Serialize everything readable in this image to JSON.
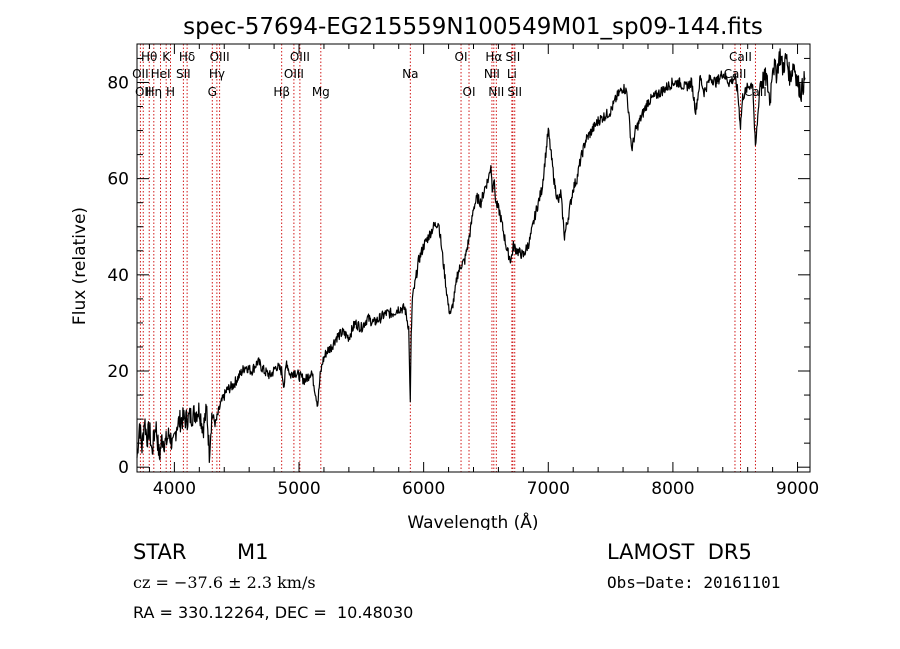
{
  "chart_data": {
    "type": "line",
    "title": "spec-57694-EG215559N100549M01_sp09-144.fits",
    "xlabel": "Wavelength (Å)",
    "ylabel": "Flux (relative)",
    "xlim": [
      3700,
      9100
    ],
    "ylim": [
      -1,
      88
    ],
    "x_ticks": [
      4000,
      5000,
      6000,
      7000,
      8000,
      9000
    ],
    "y_ticks": [
      0,
      20,
      40,
      60,
      80
    ],
    "grid": false,
    "legend": "none",
    "line_color": "#000000",
    "marker_color": "#cc0000",
    "series": [
      {
        "x": [
          3700,
          3720,
          3740,
          3760,
          3780,
          3800,
          3820,
          3850,
          3880,
          3900,
          3930,
          3960,
          3990,
          4020,
          4060,
          4100,
          4150,
          4200,
          4230,
          4260,
          4280,
          4300,
          4330,
          4370,
          4420,
          4470,
          4520,
          4570,
          4620,
          4670,
          4720,
          4770,
          4820,
          4860,
          4880,
          4900,
          4930,
          4960,
          5000,
          5050,
          5100,
          5150,
          5170,
          5190,
          5220,
          5260,
          5300,
          5350,
          5400,
          5450,
          5500,
          5550,
          5600,
          5650,
          5700,
          5750,
          5800,
          5850,
          5880,
          5893,
          5900,
          5910,
          5930,
          5960,
          6000,
          6040,
          6080,
          6120,
          6160,
          6200,
          6220,
          6250,
          6270,
          6300,
          6330,
          6360,
          6380,
          6400,
          6430,
          6460,
          6490,
          6520,
          6540,
          6550,
          6563,
          6580,
          6610,
          6640,
          6670,
          6700,
          6720,
          6750,
          6800,
          6850,
          6900,
          6950,
          7000,
          7050,
          7080,
          7100,
          7130,
          7160,
          7180,
          7200,
          7230,
          7260,
          7300,
          7350,
          7400,
          7450,
          7500,
          7550,
          7600,
          7630,
          7650,
          7670,
          7700,
          7750,
          7800,
          7850,
          7900,
          7950,
          8000,
          8050,
          8100,
          8150,
          8183,
          8220,
          8250,
          8300,
          8350,
          8400,
          8450,
          8498,
          8520,
          8542,
          8560,
          8600,
          8640,
          8662,
          8700,
          8750,
          8780,
          8800,
          8830,
          8860,
          8880,
          8910,
          8940,
          8970,
          9000,
          9030,
          9060
        ],
        "y": [
          2,
          9,
          4,
          10,
          6,
          8,
          3,
          9,
          2,
          6,
          5,
          7,
          4,
          9,
          10,
          10,
          11,
          12,
          8,
          12,
          3,
          11,
          9,
          13,
          16,
          17,
          19,
          21,
          20,
          22,
          20,
          19,
          21,
          20,
          17,
          22,
          19,
          20,
          19,
          18,
          20,
          13,
          19,
          22,
          24,
          25,
          27,
          28,
          27,
          30,
          29,
          31,
          30,
          31,
          32,
          32,
          33,
          33,
          29,
          13,
          27,
          35,
          38,
          43,
          46,
          48,
          50,
          51,
          42,
          33,
          32,
          36,
          40,
          42,
          43,
          47,
          50,
          54,
          56,
          55,
          58,
          60,
          63,
          58,
          60,
          55,
          53,
          49,
          45,
          43,
          46,
          45,
          44,
          47,
          53,
          58,
          70,
          59,
          55,
          57,
          48,
          52,
          55,
          58,
          60,
          64,
          68,
          70,
          72,
          73,
          74,
          77,
          79,
          78,
          72,
          66,
          70,
          73,
          76,
          77,
          78,
          79,
          80,
          80,
          79,
          80,
          74,
          81,
          78,
          81,
          80,
          82,
          80,
          81,
          78,
          71,
          77,
          79,
          80,
          66,
          80,
          81,
          76,
          84,
          82,
          86,
          83,
          85,
          81,
          84,
          80,
          78,
          81
        ]
      }
    ],
    "line_markers": [
      {
        "x": 3727,
        "label": "OII",
        "row": 2
      },
      {
        "x": 3750,
        "label": "OII",
        "row": 3
      },
      {
        "x": 3798,
        "label": "Hθ",
        "row": 1
      },
      {
        "x": 3835,
        "label": "Hη",
        "row": 3
      },
      {
        "x": 3889,
        "label": "HeI",
        "row": 2
      },
      {
        "x": 3934,
        "label": "K",
        "row": 1
      },
      {
        "x": 3969,
        "label": "H",
        "row": 3
      },
      {
        "x": 4072,
        "label": "SII",
        "row": 2
      },
      {
        "x": 4102,
        "label": "Hδ",
        "row": 1
      },
      {
        "x": 4304,
        "label": "G",
        "row": 3
      },
      {
        "x": 4341,
        "label": "Hγ",
        "row": 2
      },
      {
        "x": 4363,
        "label": "OIII",
        "row": 1
      },
      {
        "x": 4861,
        "label": "Hβ",
        "row": 3
      },
      {
        "x": 4959,
        "label": "OIII",
        "row": 2
      },
      {
        "x": 5007,
        "label": "OIII",
        "row": 1
      },
      {
        "x": 5175,
        "label": "Mg",
        "row": 3
      },
      {
        "x": 5893,
        "label": "Na",
        "row": 2
      },
      {
        "x": 6300,
        "label": "OI",
        "row": 1
      },
      {
        "x": 6364,
        "label": "OI",
        "row": 3
      },
      {
        "x": 6548,
        "label": "NII",
        "row": 2
      },
      {
        "x": 6563,
        "label": "Hα",
        "row": 1
      },
      {
        "x": 6583,
        "label": "NII",
        "row": 3
      },
      {
        "x": 6708,
        "label": "Li",
        "row": 2
      },
      {
        "x": 6716,
        "label": "SII",
        "row": 1
      },
      {
        "x": 6731,
        "label": "SII",
        "row": 3
      },
      {
        "x": 8498,
        "label": "CaII",
        "row": 2
      },
      {
        "x": 8542,
        "label": "CaII",
        "row": 1
      },
      {
        "x": 8662,
        "label": "CaII",
        "row": 3
      }
    ]
  },
  "info": {
    "class_label": "STAR",
    "subclass": "M1",
    "survey": "LAMOST  DR5",
    "cz": "cz = −37.6 ± 2.3 km/s",
    "obs_date": "Obs−Date: 20161101",
    "coords": "RA = 330.12264, DEC =  10.48030"
  }
}
